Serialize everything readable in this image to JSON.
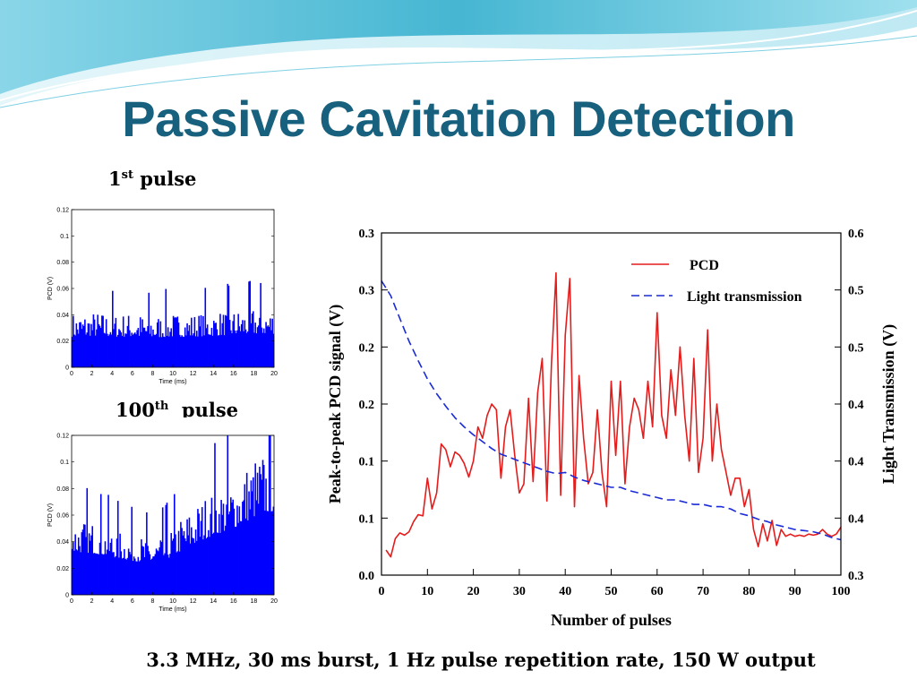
{
  "slide": {
    "title": "Passive Cavitation Detection",
    "caption": "3.3 MHz, 30 ms burst, 1 Hz pulse repetition rate, 150 W output",
    "colors": {
      "title": "#17607e",
      "bg_wave_dark": "#5bc3d8",
      "bg_wave_light": "#cdeef5"
    }
  },
  "labels": {
    "first_pulse": {
      "number": "1",
      "suffix": "st",
      "word": " pulse"
    },
    "hundredth_pulse": {
      "number": "100",
      "suffix": "th",
      "word": "  pulse"
    }
  },
  "chart_data": [
    {
      "id": "first-pulse",
      "type": "bar",
      "color": "#0000ff",
      "xlabel": "Time  (ms)",
      "ylabel": "PCD  (V)",
      "xlim": [
        0,
        20
      ],
      "ylim": [
        0,
        0.12
      ],
      "xticks": [
        0,
        2,
        4,
        6,
        8,
        10,
        12,
        14,
        16,
        18,
        20
      ],
      "yticks": [
        0,
        0.02,
        0.04,
        0.06,
        0.08,
        0.1,
        0.12
      ],
      "yticklabels": [
        "0",
        "0.02",
        "0.04",
        "0.06",
        "0.08",
        "0.1",
        "0.12"
      ],
      "envelope": {
        "x": [
          0,
          2,
          4,
          6,
          8,
          10,
          12,
          14,
          16,
          18,
          20
        ],
        "y": [
          0.031,
          0.032,
          0.031,
          0.031,
          0.03,
          0.031,
          0.031,
          0.032,
          0.033,
          0.034,
          0.034
        ]
      }
    },
    {
      "id": "hundredth-pulse",
      "type": "bar",
      "color": "#0000ff",
      "xlabel": "Time  (ms)",
      "ylabel": "PCD  (V)",
      "xlim": [
        0,
        20
      ],
      "ylim": [
        0,
        0.12
      ],
      "xticks": [
        0,
        2,
        4,
        6,
        8,
        10,
        12,
        14,
        16,
        18,
        20
      ],
      "yticks": [
        0,
        0.02,
        0.04,
        0.06,
        0.08,
        0.1,
        0.12
      ],
      "yticklabels": [
        "0",
        "0.02",
        "0.04",
        "0.06",
        "0.08",
        "0.1",
        "0.12"
      ],
      "envelope": {
        "x": [
          0,
          2,
          4,
          6,
          8,
          9,
          10,
          11,
          12,
          13,
          14,
          15,
          16,
          17,
          18,
          19,
          20
        ],
        "y": [
          0.043,
          0.042,
          0.038,
          0.034,
          0.032,
          0.034,
          0.039,
          0.045,
          0.05,
          0.055,
          0.06,
          0.063,
          0.067,
          0.072,
          0.078,
          0.082,
          0.084
        ]
      }
    },
    {
      "id": "pcd-vs-pulses",
      "type": "line",
      "xlabel": "Number of pulses",
      "ylabel": "Peak-to-peak PCD signal  (V)",
      "y2label": "Light Transmission  (V)",
      "xlim": [
        0,
        100
      ],
      "ylim": [
        0,
        0.3
      ],
      "y2lim": [
        0.3,
        0.6
      ],
      "xticks": [
        0,
        10,
        20,
        30,
        40,
        50,
        60,
        70,
        80,
        90,
        100
      ],
      "yticks": [
        0,
        0.05,
        0.1,
        0.15,
        0.2,
        0.25,
        0.3
      ],
      "yticklabels": [
        "0.0",
        "0.1",
        "0.1",
        "0.2",
        "0.2",
        "0.3",
        "0.3"
      ],
      "y2ticks": [
        0.3,
        0.35,
        0.4,
        0.45,
        0.5,
        0.55,
        0.6
      ],
      "y2ticklabels": [
        "0.3",
        "0.4",
        "0.4",
        "0.4",
        "0.5",
        "0.5",
        "0.6"
      ],
      "legend_position": "top-right",
      "series": [
        {
          "name": "PCD",
          "axis": "left",
          "color": "#e41c1c",
          "style": "solid",
          "x": [
            1,
            2,
            3,
            4,
            5,
            6,
            7,
            8,
            9,
            10,
            11,
            12,
            13,
            14,
            15,
            16,
            17,
            18,
            19,
            20,
            21,
            22,
            23,
            24,
            25,
            26,
            27,
            28,
            29,
            30,
            31,
            32,
            33,
            34,
            35,
            36,
            37,
            38,
            39,
            40,
            41,
            42,
            43,
            44,
            45,
            46,
            47,
            48,
            49,
            50,
            51,
            52,
            53,
            54,
            55,
            56,
            57,
            58,
            59,
            60,
            61,
            62,
            63,
            64,
            65,
            66,
            67,
            68,
            69,
            70,
            71,
            72,
            73,
            74,
            75,
            76,
            77,
            78,
            79,
            80,
            81,
            82,
            83,
            84,
            85,
            86,
            87,
            88,
            89,
            90,
            91,
            92,
            93,
            94,
            95,
            96,
            97,
            98,
            99,
            100
          ],
          "y": [
            0.022,
            0.016,
            0.032,
            0.037,
            0.035,
            0.038,
            0.047,
            0.053,
            0.052,
            0.085,
            0.058,
            0.072,
            0.115,
            0.11,
            0.095,
            0.108,
            0.105,
            0.098,
            0.086,
            0.1,
            0.13,
            0.12,
            0.14,
            0.15,
            0.145,
            0.085,
            0.13,
            0.145,
            0.105,
            0.072,
            0.08,
            0.155,
            0.082,
            0.16,
            0.19,
            0.065,
            0.185,
            0.265,
            0.07,
            0.21,
            0.26,
            0.06,
            0.175,
            0.12,
            0.08,
            0.09,
            0.145,
            0.09,
            0.06,
            0.17,
            0.105,
            0.17,
            0.08,
            0.13,
            0.155,
            0.145,
            0.12,
            0.17,
            0.13,
            0.23,
            0.14,
            0.12,
            0.18,
            0.14,
            0.2,
            0.14,
            0.1,
            0.19,
            0.09,
            0.12,
            0.215,
            0.1,
            0.15,
            0.11,
            0.09,
            0.07,
            0.085,
            0.085,
            0.06,
            0.075,
            0.04,
            0.025,
            0.045,
            0.03,
            0.048,
            0.026,
            0.04,
            0.034,
            0.036,
            0.034,
            0.035,
            0.034,
            0.036,
            0.035,
            0.036,
            0.04,
            0.036,
            0.034,
            0.036,
            0.042
          ]
        },
        {
          "name": "Light transmission",
          "axis": "right",
          "color": "#1a2ad6",
          "style": "dashed",
          "x": [
            0,
            2,
            4,
            6,
            8,
            10,
            12,
            14,
            16,
            18,
            20,
            22,
            24,
            26,
            28,
            30,
            32,
            34,
            36,
            38,
            40,
            42,
            44,
            46,
            48,
            50,
            52,
            54,
            56,
            58,
            60,
            62,
            64,
            66,
            68,
            70,
            72,
            74,
            76,
            78,
            80,
            82,
            84,
            86,
            88,
            90,
            92,
            94,
            96,
            98,
            100
          ],
          "y": [
            0.558,
            0.545,
            0.525,
            0.505,
            0.488,
            0.472,
            0.459,
            0.448,
            0.438,
            0.43,
            0.423,
            0.417,
            0.411,
            0.406,
            0.403,
            0.4,
            0.397,
            0.394,
            0.391,
            0.389,
            0.39,
            0.386,
            0.383,
            0.381,
            0.379,
            0.377,
            0.377,
            0.374,
            0.372,
            0.37,
            0.368,
            0.366,
            0.366,
            0.364,
            0.362,
            0.362,
            0.36,
            0.36,
            0.358,
            0.354,
            0.352,
            0.349,
            0.347,
            0.344,
            0.342,
            0.34,
            0.339,
            0.338,
            0.336,
            0.333,
            0.331
          ]
        }
      ]
    }
  ]
}
